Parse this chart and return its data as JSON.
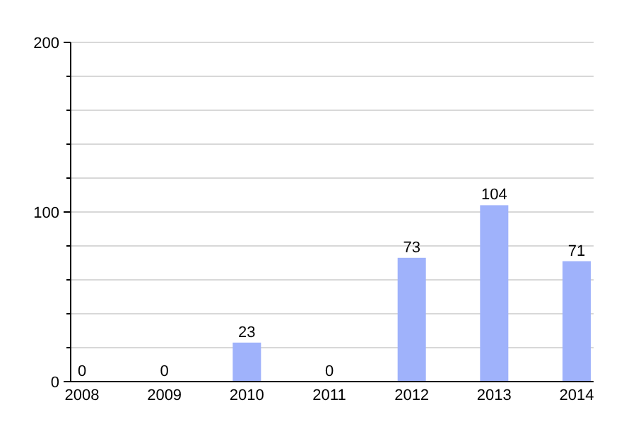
{
  "chart_data": {
    "type": "bar",
    "categories": [
      "2008",
      "2009",
      "2010",
      "2011",
      "2012",
      "2013",
      "2014"
    ],
    "values": [
      0,
      0,
      23,
      0,
      73,
      104,
      71
    ],
    "color": "#9fb2fb",
    "data_labels": true,
    "ylim": [
      0,
      200
    ],
    "yticks": [
      0,
      {
        "value": 20,
        "label": null
      },
      {
        "value": 40,
        "label": null
      },
      {
        "value": 60,
        "label": null
      },
      {
        "value": 80,
        "label": null
      },
      100,
      {
        "value": 120,
        "label": null
      },
      {
        "value": 140,
        "label": null
      },
      {
        "value": 160,
        "label": null
      },
      {
        "value": 180,
        "label": null
      },
      200
    ],
    "grid": true
  }
}
